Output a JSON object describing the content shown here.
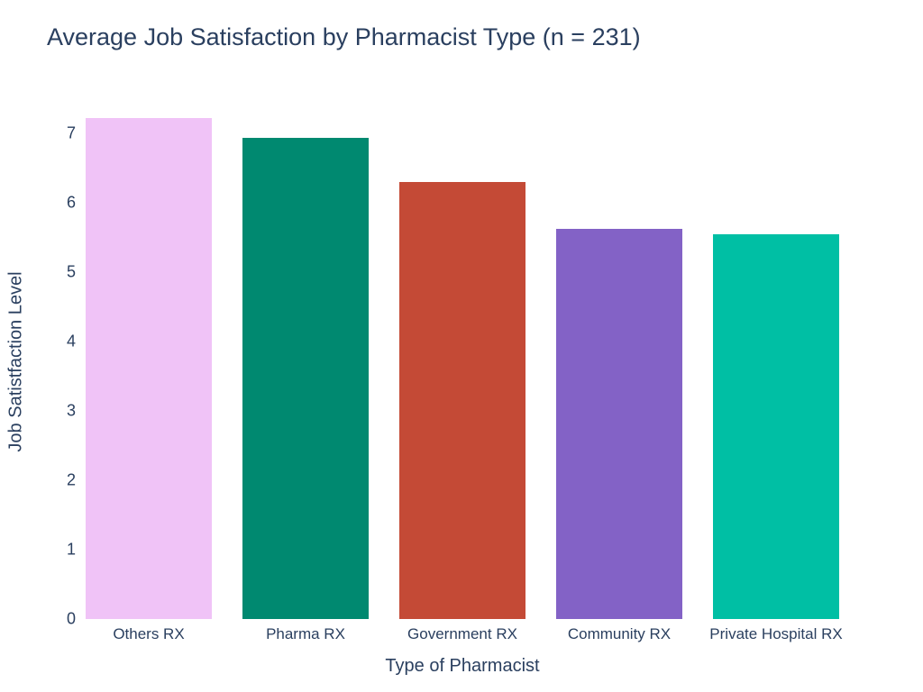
{
  "chart_data": {
    "type": "bar",
    "title": "Average Job Satisfaction by Pharmacist Type (n = 231)",
    "xlabel": "Type of Pharmacist",
    "ylabel": "Job Satistfaction Level",
    "categories": [
      "Others RX",
      "Pharma RX",
      "Government RX",
      "Community RX",
      "Private Hospital RX"
    ],
    "values": [
      7.22,
      6.93,
      6.3,
      5.62,
      5.54
    ],
    "colors": [
      "#f0c3f7",
      "#008970",
      "#c44a36",
      "#8362c6",
      "#00bfa4"
    ],
    "yticks": [
      0,
      1,
      2,
      3,
      4,
      5,
      6,
      7
    ],
    "ylim": [
      0,
      7.6
    ],
    "grid": false,
    "legend": "none",
    "text_color": "#2a3f5f",
    "background_color": "#ffffff"
  }
}
